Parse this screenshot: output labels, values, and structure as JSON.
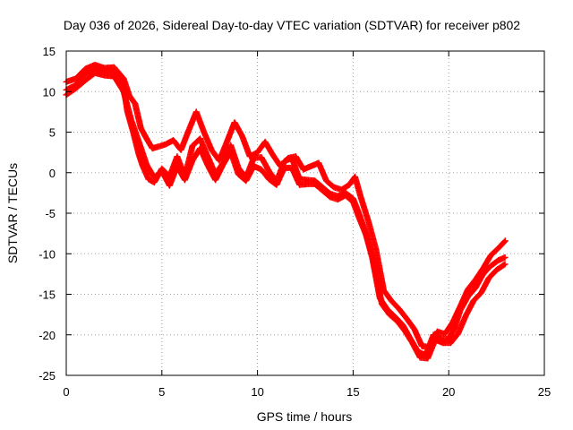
{
  "chart_data": {
    "type": "scatter",
    "title": "Day 036 of 2026, Sidereal Day-to-day VTEC variation (SDTVAR) for receiver p802",
    "xlabel": "GPS time / hours",
    "ylabel": "SDTVAR / TECUs",
    "xlim": [
      0,
      25
    ],
    "ylim": [
      -25,
      15
    ],
    "x_ticks": [
      "0",
      "5",
      "10",
      "15",
      "20",
      "25"
    ],
    "y_ticks": [
      "15",
      "10",
      "5",
      "0",
      "-5",
      "-10",
      "-15",
      "-20",
      "-25"
    ],
    "grid": true,
    "marker": "+",
    "series": [
      {
        "name": "SDTVAR",
        "color": "#ff0000",
        "tracks": [
          {
            "x": [
              0.0,
              0.5,
              1.0,
              1.5,
              2.0,
              2.5,
              3.0,
              3.2,
              3.5,
              3.8,
              4.0,
              4.3,
              4.6,
              5.0,
              5.4,
              5.8,
              6.2,
              6.6,
              7.0,
              7.4,
              7.8,
              8.2,
              8.6,
              9.0,
              9.4,
              9.8,
              10.2,
              10.6,
              11.0,
              11.4,
              11.8,
              12.2,
              12.6,
              13.0,
              13.4,
              13.8,
              14.2,
              14.6,
              15.0,
              15.3,
              15.6,
              16.0,
              16.4,
              16.8,
              17.2,
              17.6,
              18.0,
              18.4,
              18.8,
              19.2,
              19.6,
              20.0,
              20.3,
              20.6,
              21.0,
              21.4,
              21.8,
              22.2,
              22.6,
              23.0
            ],
            "y": [
              10.2,
              10.8,
              12.2,
              12.9,
              12.4,
              12.6,
              10.5,
              7.5,
              5.0,
              2.2,
              0.8,
              -0.8,
              -1.2,
              0.5,
              -0.5,
              2.0,
              -0.5,
              3.3,
              4.2,
              2.0,
              -0.2,
              1.2,
              3.4,
              0.6,
              -0.6,
              1.8,
              1.9,
              0.2,
              -1.1,
              1.4,
              1.8,
              -0.8,
              -0.9,
              -1.0,
              -1.8,
              -2.6,
              -2.9,
              -2.5,
              -3.2,
              -5.0,
              -7.0,
              -10.5,
              -15.5,
              -16.9,
              -17.8,
              -18.8,
              -20.5,
              -22.1,
              -22.5,
              -20.0,
              -20.5,
              -20.5,
              -19.2,
              -17.0,
              -15.3,
              -14.2,
              -12.5,
              -11.5,
              -10.8,
              -10.4
            ]
          },
          {
            "x": [
              0.0,
              0.5,
              1.0,
              1.5,
              2.0,
              2.5,
              3.0,
              3.3,
              3.6,
              3.9,
              4.2,
              4.5,
              4.8,
              5.2,
              5.6,
              6.0,
              6.4,
              6.8,
              7.2,
              7.6,
              8.0,
              8.4,
              8.8,
              9.2,
              9.6,
              10.0,
              10.4,
              10.8,
              11.2,
              11.6,
              12.0,
              12.4,
              12.8,
              13.2,
              13.6,
              14.0,
              14.4,
              14.8,
              15.1,
              15.4,
              15.8,
              16.2,
              16.6,
              17.0,
              17.4,
              17.8,
              18.2,
              18.6,
              19.0,
              19.4,
              19.8,
              20.2,
              20.6,
              21.0,
              21.4,
              21.8,
              22.2,
              22.6,
              23.0
            ],
            "y": [
              11.2,
              11.6,
              12.8,
              13.3,
              12.9,
              13.0,
              11.6,
              9.5,
              8.5,
              5.5,
              4.2,
              3.0,
              3.2,
              3.5,
              4.0,
              2.8,
              5.2,
              7.5,
              5.0,
              2.8,
              1.5,
              3.8,
              6.2,
              4.5,
              2.0,
              2.5,
              3.8,
              2.2,
              0.8,
              1.8,
              2.0,
              0.4,
              0.8,
              1.2,
              -1.0,
              -1.8,
              -2.1,
              -1.5,
              -0.5,
              -3.0,
              -6.0,
              -9.5,
              -14.5,
              -15.8,
              -16.8,
              -18.0,
              -19.3,
              -21.4,
              -21.5,
              -19.6,
              -19.9,
              -18.5,
              -16.5,
              -14.4,
              -13.2,
              -11.8,
              -10.2,
              -9.3,
              -8.3
            ]
          },
          {
            "x": [
              0.0,
              0.5,
              1.0,
              1.5,
              2.0,
              2.5,
              3.0,
              3.4,
              3.8,
              4.2,
              4.6,
              5.0,
              5.4,
              5.8,
              6.2,
              6.6,
              7.0,
              7.4,
              7.8,
              8.2,
              8.6,
              9.0,
              9.4,
              9.8,
              10.2,
              10.6,
              11.0,
              11.4,
              11.8,
              12.2,
              12.6,
              13.0,
              13.4,
              13.8,
              14.2,
              14.6,
              15.0,
              15.3,
              15.7,
              16.1,
              16.5,
              16.9,
              17.3,
              17.7,
              18.1,
              18.5,
              18.9,
              19.3,
              19.7,
              20.1,
              20.5,
              20.9,
              21.3,
              21.7,
              22.1,
              22.5,
              23.0
            ],
            "y": [
              9.6,
              10.4,
              11.4,
              12.3,
              12.0,
              11.9,
              10.0,
              6.5,
              3.8,
              1.0,
              -0.6,
              0.2,
              -1.6,
              0.8,
              -0.9,
              1.5,
              3.0,
              0.9,
              -0.9,
              1.0,
              2.6,
              -0.2,
              -1.0,
              0.8,
              0.4,
              -0.8,
              -1.5,
              0.6,
              0.6,
              -1.5,
              -1.4,
              -1.4,
              -2.2,
              -3.0,
              -3.3,
              -2.8,
              -3.6,
              -5.5,
              -7.8,
              -11.0,
              -16.2,
              -17.5,
              -18.3,
              -19.5,
              -21.0,
              -22.8,
              -22.9,
              -20.6,
              -21.0,
              -21.0,
              -19.8,
              -17.6,
              -15.8,
              -14.8,
              -13.0,
              -12.0,
              -11.2
            ]
          }
        ]
      }
    ]
  }
}
